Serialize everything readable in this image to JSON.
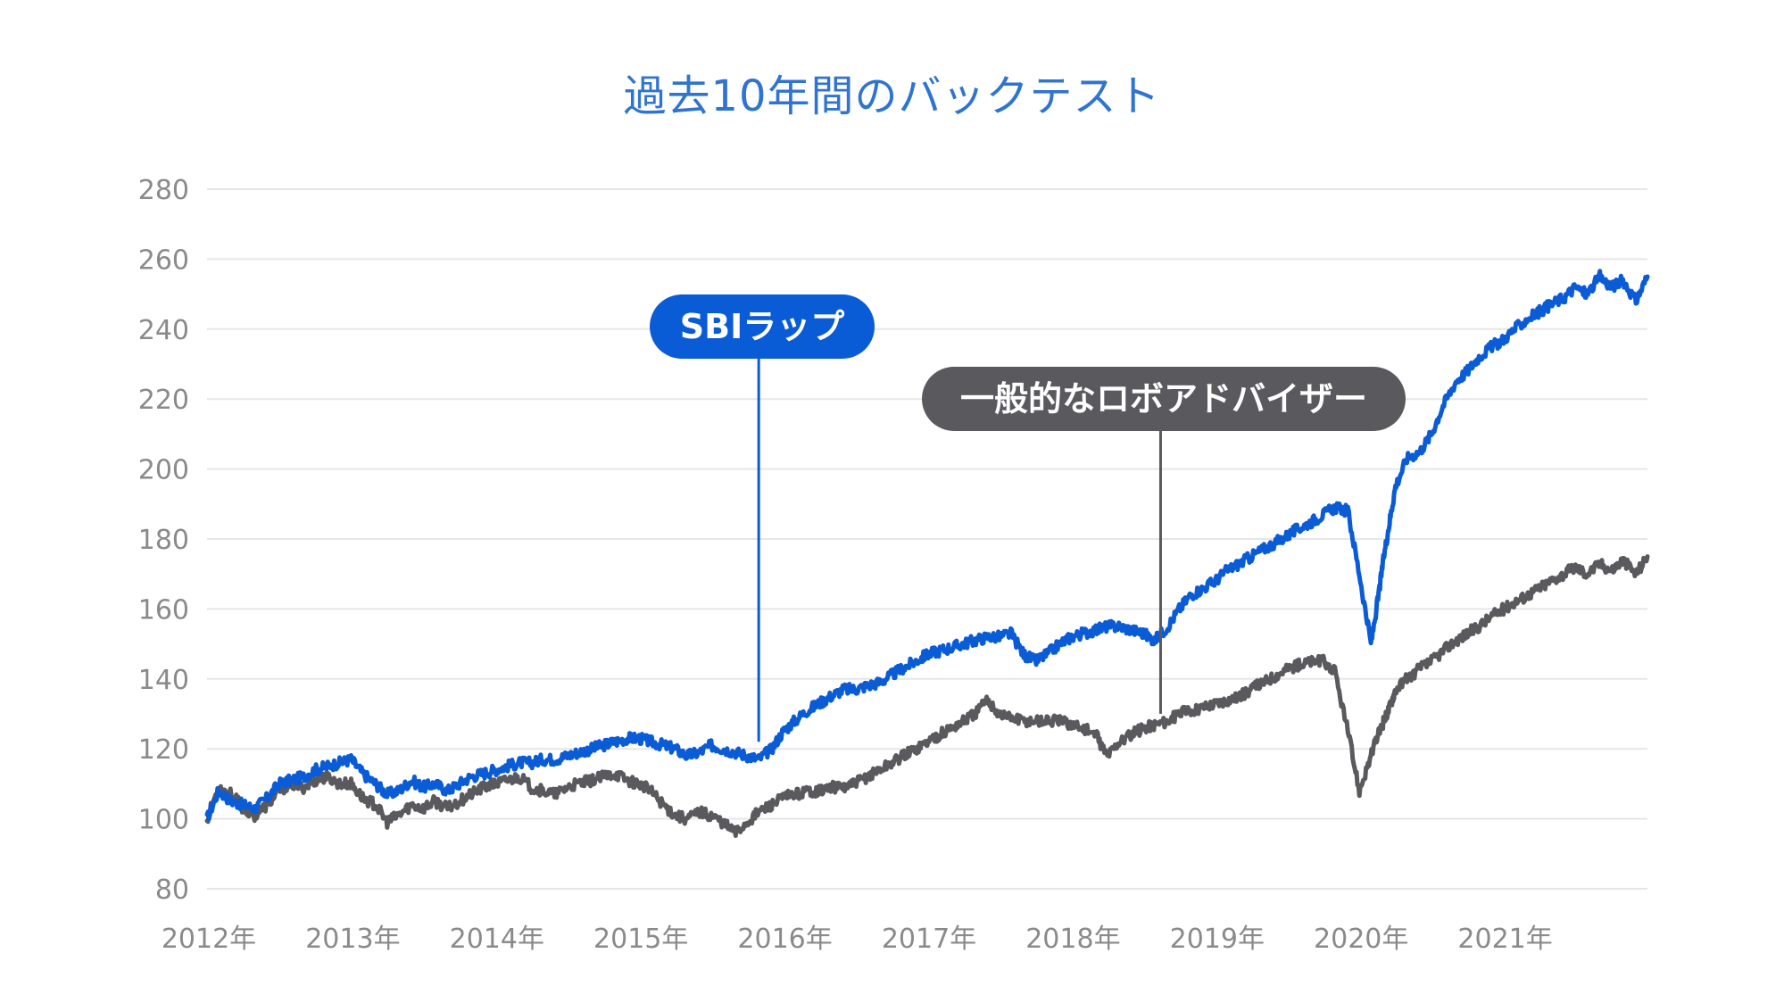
{
  "colors": {
    "sbi": "#0a5bd6",
    "robo": "#5a5a5e",
    "grid": "#e6e6e6",
    "tick": "#8a8a8a",
    "title": "#2f74d0"
  },
  "chart_data": {
    "type": "line",
    "title": "過去10年間のバックテスト",
    "xlabel": "",
    "ylabel": "",
    "ylim": [
      80,
      280
    ],
    "yticks": [
      80,
      100,
      120,
      140,
      160,
      180,
      200,
      220,
      240,
      260,
      280
    ],
    "xlim": [
      2012.0,
      2022.0
    ],
    "xticks": [
      {
        "value": 2012,
        "label": "2012年"
      },
      {
        "value": 2013,
        "label": "2013年"
      },
      {
        "value": 2014,
        "label": "2014年"
      },
      {
        "value": 2015,
        "label": "2015年"
      },
      {
        "value": 2016,
        "label": "2016年"
      },
      {
        "value": 2017,
        "label": "2017年"
      },
      {
        "value": 2018,
        "label": "2018年"
      },
      {
        "value": 2019,
        "label": "2019年"
      },
      {
        "value": 2020,
        "label": "2020年"
      },
      {
        "value": 2021,
        "label": "2021年"
      }
    ],
    "grid": true,
    "legend": "none",
    "series": [
      {
        "name": "SBIラップ",
        "color": "#0a5bd6",
        "x": [
          2012.0,
          2012.08,
          2012.17,
          2012.25,
          2012.33,
          2012.42,
          2012.5,
          2012.58,
          2012.67,
          2012.75,
          2012.83,
          2012.92,
          2013.0,
          2013.08,
          2013.17,
          2013.25,
          2013.33,
          2013.42,
          2013.5,
          2013.58,
          2013.67,
          2013.75,
          2013.83,
          2013.92,
          2014.0,
          2014.08,
          2014.17,
          2014.25,
          2014.33,
          2014.42,
          2014.5,
          2014.58,
          2014.67,
          2014.75,
          2014.83,
          2014.92,
          2015.0,
          2015.08,
          2015.17,
          2015.25,
          2015.33,
          2015.42,
          2015.5,
          2015.58,
          2015.67,
          2015.75,
          2015.83,
          2015.92,
          2016.0,
          2016.08,
          2016.17,
          2016.25,
          2016.33,
          2016.42,
          2016.5,
          2016.58,
          2016.67,
          2016.75,
          2016.83,
          2016.92,
          2017.0,
          2017.08,
          2017.17,
          2017.25,
          2017.33,
          2017.42,
          2017.5,
          2017.58,
          2017.67,
          2017.75,
          2017.83,
          2017.92,
          2018.0,
          2018.08,
          2018.17,
          2018.25,
          2018.33,
          2018.42,
          2018.5,
          2018.58,
          2018.67,
          2018.75,
          2018.83,
          2018.92,
          2019.0,
          2019.08,
          2019.17,
          2019.25,
          2019.33,
          2019.42,
          2019.5,
          2019.58,
          2019.67,
          2019.75,
          2019.83,
          2019.92,
          2020.0,
          2020.08,
          2020.13,
          2020.17,
          2020.21,
          2020.25,
          2020.33,
          2020.42,
          2020.5,
          2020.58,
          2020.67,
          2020.75,
          2020.83,
          2020.92,
          2021.0,
          2021.08,
          2021.17,
          2021.25,
          2021.33,
          2021.42,
          2021.5,
          2021.58,
          2021.67,
          2021.75,
          2021.83,
          2021.92,
          2022.0
        ],
        "y": [
          100,
          108,
          105,
          104,
          103,
          106,
          110,
          111,
          112,
          114,
          115,
          116,
          117,
          113,
          110,
          107,
          108,
          111,
          109,
          110,
          108,
          110,
          112,
          113,
          114,
          115,
          116,
          116,
          117,
          117,
          118,
          119,
          120,
          121,
          122,
          123,
          123,
          122,
          121,
          120,
          118,
          119,
          121,
          120,
          119,
          118,
          117,
          120,
          125,
          128,
          131,
          133,
          135,
          137,
          137,
          138,
          139,
          141,
          143,
          145,
          147,
          148,
          149,
          150,
          151,
          152,
          152,
          153,
          147,
          145,
          147,
          150,
          152,
          153,
          154,
          155,
          155,
          154,
          153,
          151,
          155,
          160,
          164,
          166,
          168,
          171,
          173,
          175,
          177,
          179,
          181,
          183,
          185,
          187,
          189,
          188,
          170,
          150,
          163,
          175,
          185,
          195,
          203,
          205,
          210,
          218,
          225,
          228,
          232,
          235,
          237,
          240,
          243,
          245,
          247,
          249,
          252,
          250,
          255,
          252,
          254,
          248,
          255
        ]
      },
      {
        "name": "一般的なロボアドバイザー",
        "color": "#5a5a5e",
        "x": [
          2012.0,
          2012.08,
          2012.17,
          2012.25,
          2012.33,
          2012.42,
          2012.5,
          2012.58,
          2012.67,
          2012.75,
          2012.83,
          2012.92,
          2013.0,
          2013.08,
          2013.17,
          2013.25,
          2013.33,
          2013.42,
          2013.5,
          2013.58,
          2013.67,
          2013.75,
          2013.83,
          2013.92,
          2014.0,
          2014.08,
          2014.17,
          2014.25,
          2014.33,
          2014.42,
          2014.5,
          2014.58,
          2014.67,
          2014.75,
          2014.83,
          2014.92,
          2015.0,
          2015.08,
          2015.17,
          2015.25,
          2015.33,
          2015.42,
          2015.5,
          2015.58,
          2015.67,
          2015.75,
          2015.83,
          2015.92,
          2016.0,
          2016.08,
          2016.17,
          2016.25,
          2016.33,
          2016.42,
          2016.5,
          2016.58,
          2016.67,
          2016.75,
          2016.83,
          2016.92,
          2017.0,
          2017.08,
          2017.17,
          2017.25,
          2017.33,
          2017.42,
          2017.5,
          2017.58,
          2017.67,
          2017.75,
          2017.83,
          2017.92,
          2018.0,
          2018.08,
          2018.17,
          2018.25,
          2018.33,
          2018.42,
          2018.5,
          2018.58,
          2018.67,
          2018.75,
          2018.83,
          2018.92,
          2019.0,
          2019.08,
          2019.17,
          2019.25,
          2019.33,
          2019.42,
          2019.5,
          2019.58,
          2019.67,
          2019.75,
          2019.83,
          2019.92,
          2020.0,
          2020.08,
          2020.13,
          2020.17,
          2020.21,
          2020.25,
          2020.33,
          2020.42,
          2020.5,
          2020.58,
          2020.67,
          2020.75,
          2020.83,
          2020.92,
          2021.0,
          2021.08,
          2021.17,
          2021.25,
          2021.33,
          2021.42,
          2021.5,
          2021.58,
          2021.67,
          2021.75,
          2021.83,
          2021.92,
          2022.0
        ],
        "y": [
          100,
          109,
          107,
          103,
          101,
          104,
          108,
          110,
          109,
          111,
          112,
          110,
          110,
          106,
          104,
          99,
          101,
          104,
          103,
          105,
          103,
          105,
          107,
          109,
          110,
          111,
          112,
          109,
          108,
          107,
          109,
          110,
          111,
          112,
          113,
          111,
          110,
          108,
          104,
          101,
          100,
          102,
          101,
          99,
          96,
          99,
          102,
          104,
          106,
          107,
          108,
          108,
          109,
          109,
          110,
          112,
          114,
          116,
          118,
          120,
          122,
          124,
          126,
          128,
          130,
          134,
          130,
          129,
          128,
          128,
          128,
          128,
          127,
          126,
          124,
          118,
          122,
          124,
          126,
          127,
          128,
          130,
          131,
          132,
          133,
          134,
          135,
          137,
          139,
          141,
          143,
          144,
          145,
          145,
          142,
          125,
          108,
          118,
          124,
          128,
          132,
          137,
          140,
          143,
          145,
          148,
          151,
          153,
          155,
          158,
          160,
          162,
          164,
          166,
          168,
          170,
          172,
          170,
          173,
          171,
          174,
          170,
          175
        ]
      }
    ],
    "annotations": [
      {
        "text": "SBIラップ",
        "series": 0,
        "x": 2015.83,
        "y": 120
      },
      {
        "text": "一般的なロボアドバイザー",
        "series": 1,
        "x": 2018.62,
        "y": 128
      }
    ]
  }
}
